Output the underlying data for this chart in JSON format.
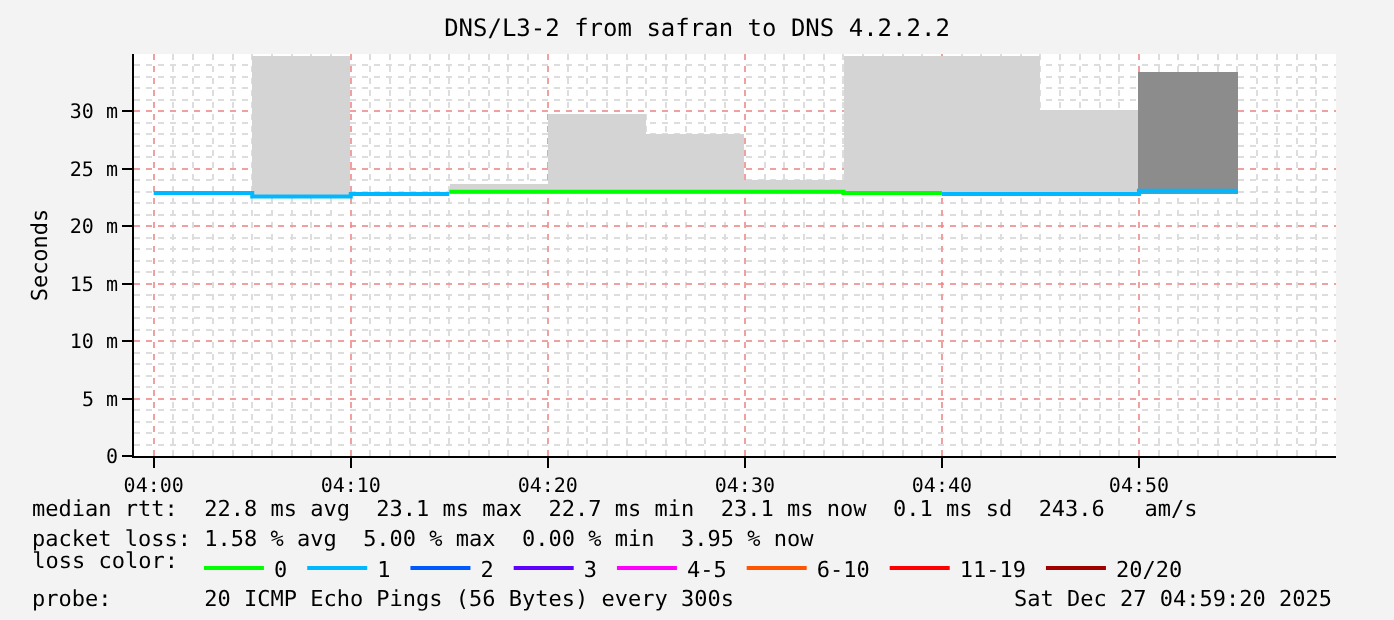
{
  "chart_data": {
    "type": "line",
    "title": "DNS/L3-2 from safran to DNS 4.2.2.2",
    "ylabel": "Seconds",
    "legend_title": "loss color:",
    "legend": "bottom",
    "grid": true,
    "xlim": [
      "2025-12-27T03:59",
      "2025-12-27T05:00"
    ],
    "xticks": [
      {
        "value": "2025-12-27T04:00",
        "label": "04:00"
      },
      {
        "value": "2025-12-27T04:10",
        "label": "04:10"
      },
      {
        "value": "2025-12-27T04:20",
        "label": "04:20"
      },
      {
        "value": "2025-12-27T04:30",
        "label": "04:30"
      },
      {
        "value": "2025-12-27T04:40",
        "label": "04:40"
      },
      {
        "value": "2025-12-27T04:50",
        "label": "04:50"
      }
    ],
    "ylim": [
      0,
      35
    ],
    "yticks": [
      0,
      {
        "value": 5,
        "label": "5 m"
      },
      {
        "value": 10,
        "label": "10 m"
      },
      {
        "value": 15,
        "label": "15 m"
      },
      {
        "value": 20,
        "label": "20 m"
      },
      {
        "value": 25,
        "label": "25 m"
      },
      {
        "value": 30,
        "label": "30 m"
      }
    ],
    "series": [
      {
        "type": "bar",
        "color": "#d4d4d4",
        "colors": [
          "#d4d4d4",
          "#d4d4d4",
          "#d4d4d4",
          "#d4d4d4",
          "#d4d4d4",
          "#d4d4d4",
          "#d4d4d4",
          "#d4d4d4",
          "#8c8c8c"
        ],
        "x": [
          "2025-12-27T04:07:30",
          "2025-12-27T04:17:30",
          "2025-12-27T04:22:30",
          "2025-12-27T04:27:30",
          "2025-12-27T04:32:30",
          "2025-12-27T04:37:30",
          "2025-12-27T04:42:30",
          "2025-12-27T04:47:30",
          "2025-12-27T04:52:30"
        ],
        "base": [
          22.6,
          22.8,
          22.8,
          22.8,
          22.8,
          22.8,
          22.7,
          22.7,
          22.8
        ],
        "values": [
          12.2,
          0.8,
          7.0,
          5.3,
          1.3,
          12.0,
          12.1,
          7.4,
          10.6
        ]
      },
      {
        "name": "0",
        "color": "#00ff00",
        "x": [
          "2025-12-27T04:15",
          "2025-12-27T04:35",
          "2025-12-27T04:35",
          "2025-12-27T04:40"
        ],
        "values": [
          23.0,
          23.0,
          22.9,
          22.9
        ]
      },
      {
        "name": "1",
        "color": "#00b8ff",
        "x": [
          "2025-12-27T04:00",
          "2025-12-27T04:05",
          "2025-12-27T04:05",
          "2025-12-27T04:10",
          "2025-12-27T04:10",
          "2025-12-27T04:15",
          "2025-12-27T04:27",
          "2025-12-27T04:40",
          "2025-12-27T04:45",
          "2025-12-27T04:45",
          "2025-12-27T04:50",
          "2025-12-27T04:50",
          "2025-12-27T04:55"
        ],
        "values": [
          22.9,
          22.9,
          22.6,
          22.6,
          22.8,
          22.8,
          null,
          22.8,
          22.8,
          22.8,
          22.8,
          23.1,
          23.1
        ]
      },
      {
        "name": "2",
        "color": "#0059ff"
      },
      {
        "name": "3",
        "color": "#5e00ff"
      },
      {
        "name": "4-5",
        "color": "#ff00ff"
      },
      {
        "name": "6-10",
        "color": "#ff5500"
      },
      {
        "name": "11-19",
        "color": "#ff0000"
      },
      {
        "name": "20/20",
        "color": "#a10000"
      }
    ],
    "annotations": [
      "median rtt:  22.8 ms avg  23.1 ms max  22.7 ms min  23.1 ms now  0.1 ms sd  243.6   am/s",
      "packet loss: 1.58 % avg  5.00 % max  0.00 % min  3.95 % now",
      "probe:       20 ICMP Echo Pings (56 Bytes) every 300s",
      "Sat Dec 27 04:59:20 2025"
    ]
  }
}
